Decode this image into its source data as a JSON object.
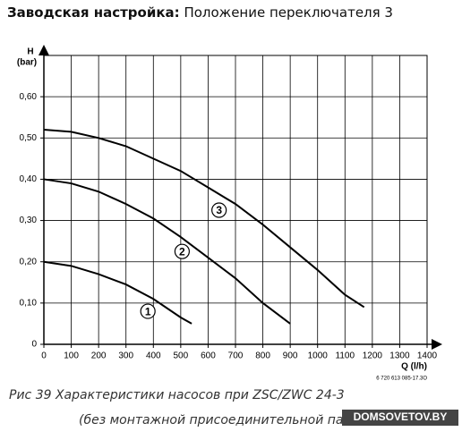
{
  "chart_data": {
    "type": "line",
    "title": "Заводская настройка:",
    "subtitle": "Положение переключателя 3",
    "y_label": "H",
    "y_unit": "(bar)",
    "x_label": "Q (l/h)",
    "code": "6 720 613 085-17.3O",
    "caption": "Рис 39   Характеристики насосов при ZSC/ZWC 24-3",
    "caption_line2": "(без монтажной присоединительной панели)",
    "watermark": "DOMSOVETOV.BY",
    "xlim": [
      0,
      1400
    ],
    "ylim": [
      0,
      0.7
    ],
    "xticks": [
      0,
      100,
      200,
      300,
      400,
      500,
      600,
      700,
      800,
      900,
      1000,
      1100,
      1200,
      1300,
      1400
    ],
    "yticks": [
      0,
      {
        "value": 0.1,
        "label": "0,10"
      },
      {
        "value": 0.2,
        "label": "0,20"
      },
      {
        "value": 0.3,
        "label": "0,30"
      },
      {
        "value": 0.4,
        "label": "0,40"
      },
      {
        "value": 0.5,
        "label": "0,50"
      },
      {
        "value": 0.6,
        "label": "0,60"
      }
    ],
    "grid": true,
    "series": [
      {
        "name": "1",
        "color": "#000000",
        "x": [
          0,
          100,
          200,
          300,
          400,
          500,
          540
        ],
        "values": [
          0.2,
          0.19,
          0.17,
          0.145,
          0.11,
          0.065,
          0.05
        ]
      },
      {
        "name": "2",
        "color": "#000000",
        "x": [
          0,
          100,
          200,
          300,
          400,
          500,
          600,
          700,
          800,
          900
        ],
        "values": [
          0.4,
          0.39,
          0.37,
          0.34,
          0.305,
          0.26,
          0.21,
          0.16,
          0.1,
          0.05
        ]
      },
      {
        "name": "3",
        "color": "#000000",
        "x": [
          0,
          100,
          200,
          300,
          400,
          500,
          600,
          700,
          800,
          900,
          1000,
          1100,
          1170
        ],
        "values": [
          0.52,
          0.515,
          0.5,
          0.48,
          0.45,
          0.42,
          0.38,
          0.34,
          0.29,
          0.235,
          0.18,
          0.12,
          0.09
        ]
      }
    ]
  }
}
